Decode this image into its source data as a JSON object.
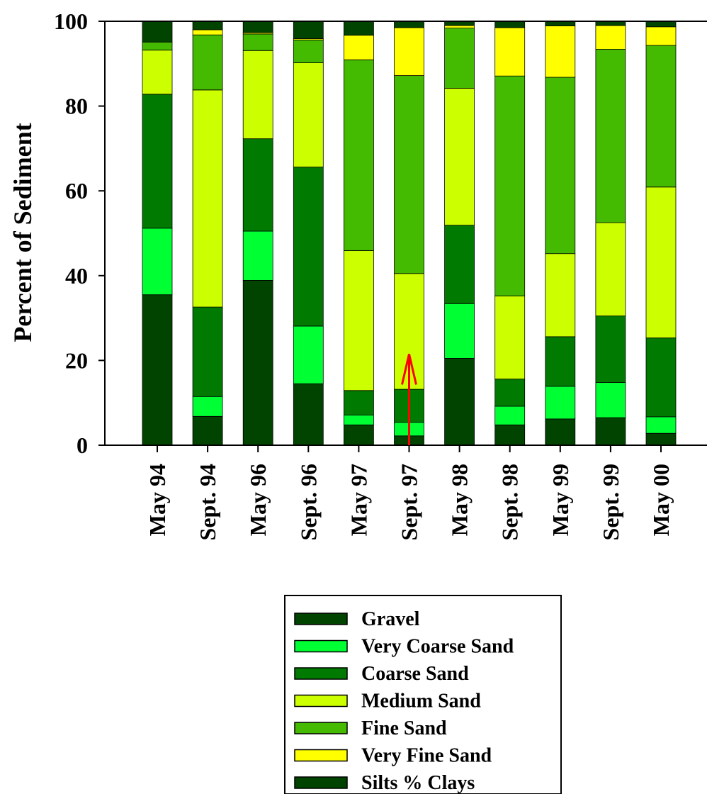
{
  "chart_data": {
    "type": "bar",
    "stacked": true,
    "title": "",
    "xlabel": "",
    "ylabel": "Percent of Sediment",
    "ylim": [
      0,
      100
    ],
    "yticks": [
      "0",
      "20",
      "40",
      "60",
      "80",
      "100"
    ],
    "grid": false,
    "legend_position": "bottom",
    "categories": [
      "May 94",
      "Sept. 94",
      "May 96",
      "Sept. 96",
      "May 97",
      "Sept. 97",
      "May 98",
      "Sept. 98",
      "May 99",
      "Sept. 99",
      "May 00"
    ],
    "series": [
      {
        "name": "Gravel",
        "color": "#004400",
        "values": [
          35.5,
          6.8,
          38.9,
          14.5,
          4.8,
          2.2,
          20.5,
          4.8,
          6.2,
          6.5,
          2.8
        ]
      },
      {
        "name": "Very Coarse Sand",
        "color": "#00ff33",
        "values": [
          15.7,
          4.7,
          11.6,
          13.6,
          2.3,
          3.2,
          12.9,
          4.4,
          7.7,
          8.3,
          3.9
        ]
      },
      {
        "name": "Coarse Sand",
        "color": "#007a00",
        "values": [
          31.6,
          21.1,
          21.8,
          37.5,
          5.8,
          7.8,
          18.5,
          6.4,
          11.7,
          15.7,
          18.6
        ]
      },
      {
        "name": "Medium Sand",
        "color": "#ccff00",
        "values": [
          10.4,
          51.2,
          20.8,
          24.6,
          33.0,
          27.3,
          32.3,
          19.6,
          19.6,
          22.0,
          35.6
        ]
      },
      {
        "name": "Fine Sand",
        "color": "#44bb00",
        "values": [
          1.9,
          13.0,
          3.9,
          5.4,
          45.0,
          46.7,
          14.2,
          51.9,
          41.6,
          40.9,
          33.4
        ]
      },
      {
        "name": "Very Fine Sand",
        "color": "#ffff00",
        "values": [
          0.0,
          1.2,
          0.3,
          0.3,
          5.8,
          11.3,
          0.6,
          11.4,
          12.1,
          5.6,
          4.4
        ]
      },
      {
        "name": "Silts % Clays",
        "color": "#004400",
        "values": [
          4.9,
          2.0,
          2.7,
          4.1,
          3.3,
          1.5,
          1.0,
          1.5,
          1.1,
          1.0,
          1.3
        ]
      }
    ],
    "annotation": {
      "type": "arrow",
      "color": "#ff0000",
      "category": "Sept. 97",
      "from_value": 0,
      "to_value": 21.5
    }
  }
}
